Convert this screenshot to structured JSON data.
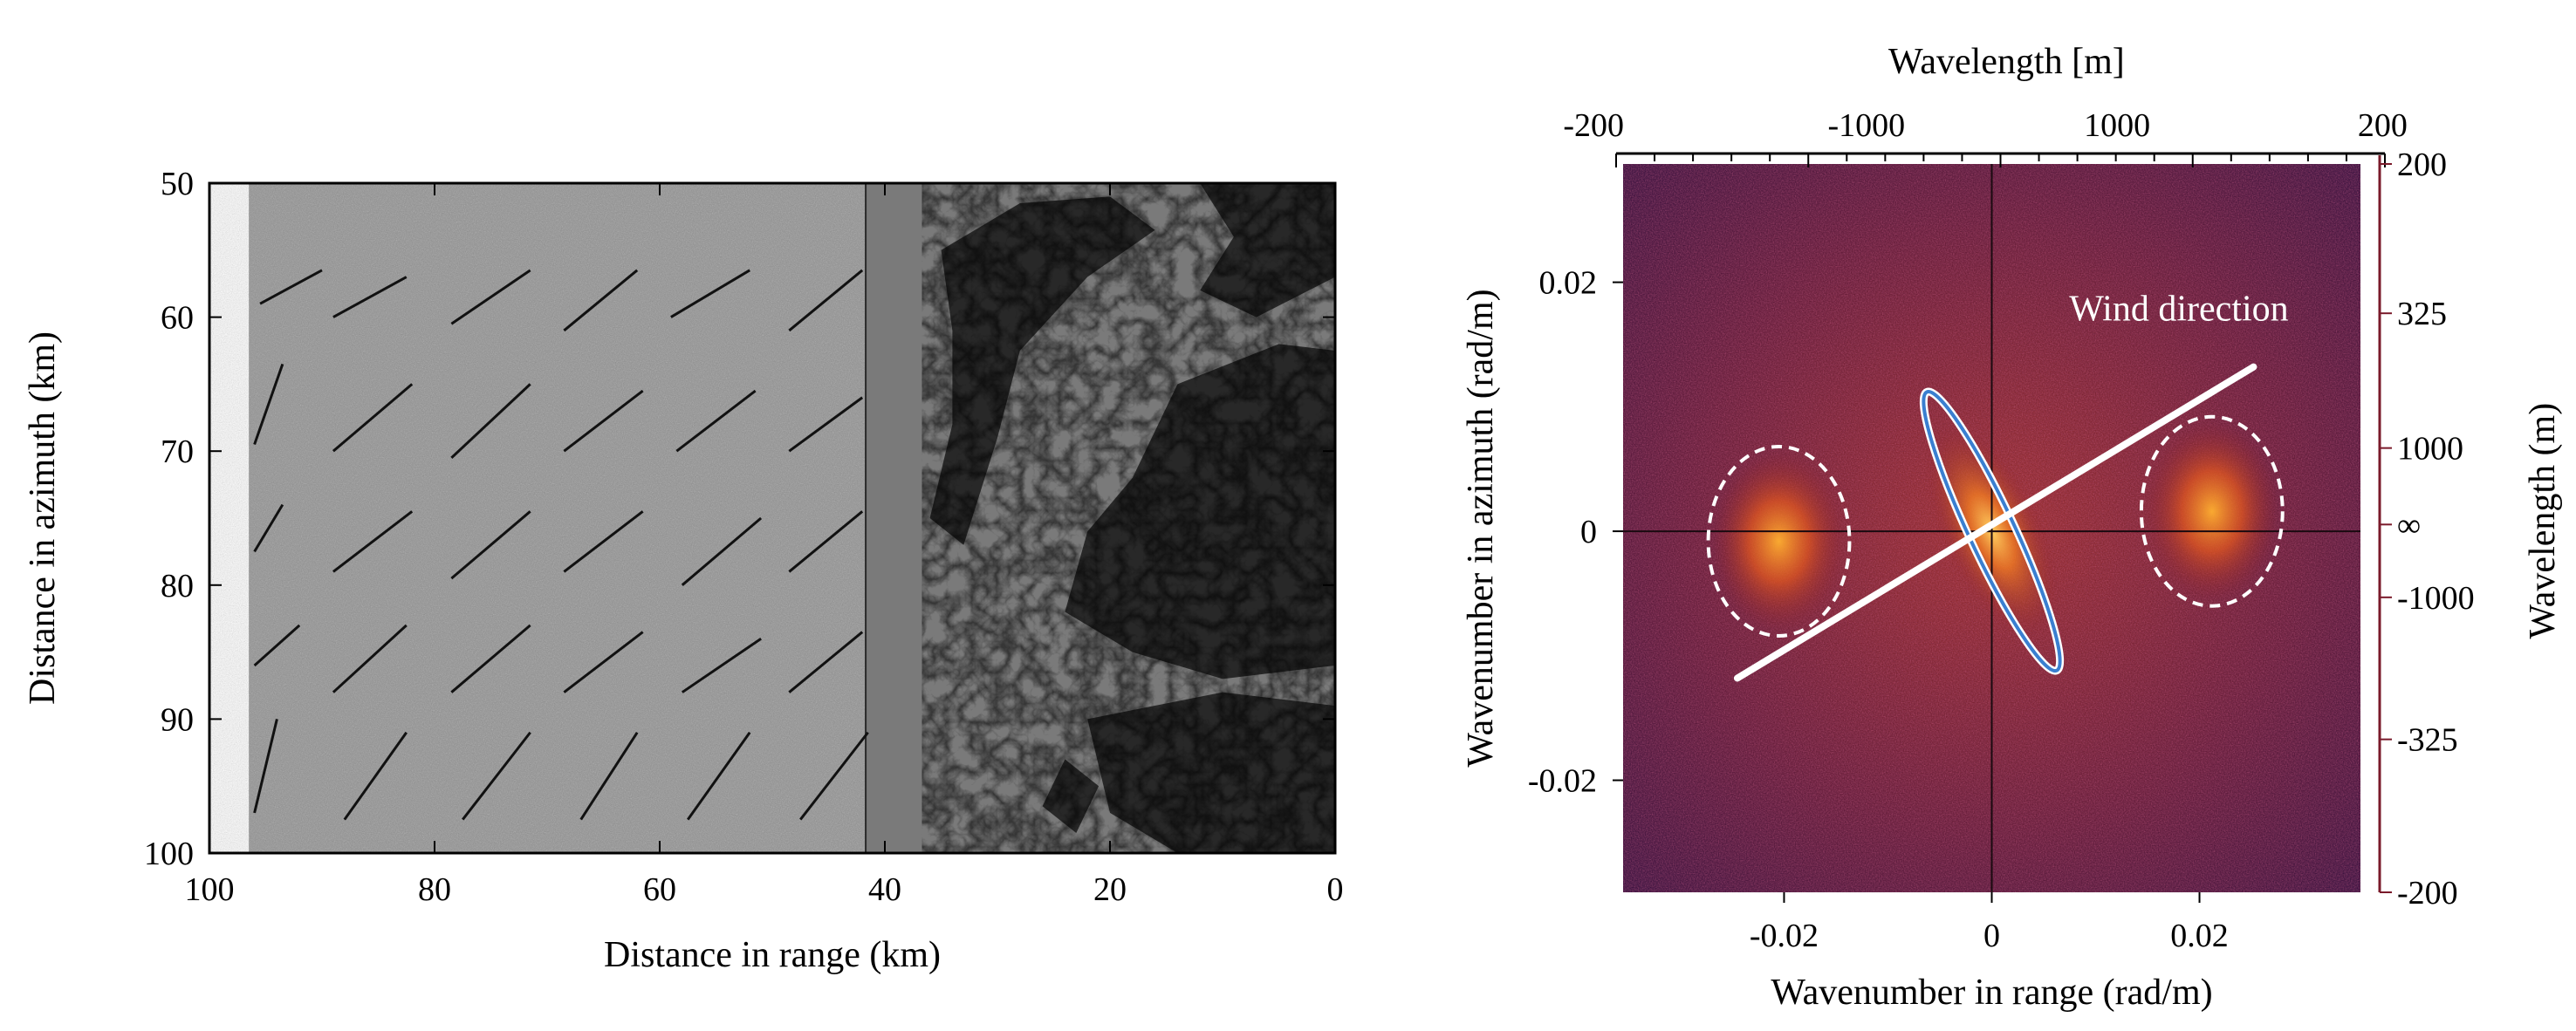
{
  "left_panel": {
    "xlabel": "Distance in range (km)",
    "ylabel": "Distance in azimuth (km)",
    "x_ticks": [
      100,
      80,
      60,
      40,
      20,
      0
    ],
    "y_ticks": [
      50,
      60,
      70,
      80,
      90,
      100
    ],
    "xlim": [
      100,
      0
    ],
    "ylim": [
      50,
      100
    ],
    "wind_marks": [
      {
        "x": [
          95.5,
          90.0
        ],
        "y": [
          59.0,
          56.5
        ]
      },
      {
        "x": [
          89.0,
          82.5
        ],
        "y": [
          60.0,
          57.0
        ]
      },
      {
        "x": [
          78.5,
          71.5
        ],
        "y": [
          60.5,
          56.5
        ]
      },
      {
        "x": [
          68.5,
          62.0
        ],
        "y": [
          61.0,
          56.5
        ]
      },
      {
        "x": [
          59.0,
          52.0
        ],
        "y": [
          60.0,
          56.5
        ]
      },
      {
        "x": [
          48.5,
          42.0
        ],
        "y": [
          61.0,
          56.5
        ]
      },
      {
        "x": [
          96.0,
          93.5
        ],
        "y": [
          69.5,
          63.5
        ]
      },
      {
        "x": [
          89.0,
          82.0
        ],
        "y": [
          70.0,
          65.0
        ]
      },
      {
        "x": [
          78.5,
          71.5
        ],
        "y": [
          70.5,
          65.0
        ]
      },
      {
        "x": [
          68.5,
          61.5
        ],
        "y": [
          70.0,
          65.5
        ]
      },
      {
        "x": [
          58.5,
          51.5
        ],
        "y": [
          70.0,
          65.5
        ]
      },
      {
        "x": [
          48.5,
          42.0
        ],
        "y": [
          70.0,
          66.0
        ]
      },
      {
        "x": [
          96.0,
          93.5
        ],
        "y": [
          77.5,
          74.0
        ]
      },
      {
        "x": [
          89.0,
          82.0
        ],
        "y": [
          79.0,
          74.5
        ]
      },
      {
        "x": [
          78.5,
          71.5
        ],
        "y": [
          79.5,
          74.5
        ]
      },
      {
        "x": [
          68.5,
          61.5
        ],
        "y": [
          79.0,
          74.5
        ]
      },
      {
        "x": [
          58.0,
          51.0
        ],
        "y": [
          80.0,
          75.0
        ]
      },
      {
        "x": [
          48.5,
          42.0
        ],
        "y": [
          79.0,
          74.5
        ]
      },
      {
        "x": [
          96.0,
          92.0
        ],
        "y": [
          86.0,
          83.0
        ]
      },
      {
        "x": [
          89.0,
          82.5
        ],
        "y": [
          88.0,
          83.0
        ]
      },
      {
        "x": [
          78.5,
          71.5
        ],
        "y": [
          88.0,
          83.0
        ]
      },
      {
        "x": [
          68.5,
          61.5
        ],
        "y": [
          88.0,
          83.5
        ]
      },
      {
        "x": [
          58.0,
          51.0
        ],
        "y": [
          88.0,
          84.0
        ]
      },
      {
        "x": [
          48.5,
          42.0
        ],
        "y": [
          88.0,
          83.5
        ]
      },
      {
        "x": [
          96.0,
          94.0
        ],
        "y": [
          97.0,
          90.0
        ]
      },
      {
        "x": [
          88.0,
          82.5
        ],
        "y": [
          97.5,
          91.0
        ]
      },
      {
        "x": [
          77.5,
          71.5
        ],
        "y": [
          97.5,
          91.0
        ]
      },
      {
        "x": [
          67.0,
          62.0
        ],
        "y": [
          97.5,
          91.0
        ]
      },
      {
        "x": [
          57.5,
          52.0
        ],
        "y": [
          97.5,
          91.0
        ]
      },
      {
        "x": [
          47.5,
          41.5
        ],
        "y": [
          97.5,
          91.0
        ]
      }
    ]
  },
  "right_panel": {
    "top_axis_title": "Wavelength [m]",
    "top_ticks": [
      "-200",
      "-1000",
      "1000",
      "200"
    ],
    "right_axis_title": "Wavelength (m)",
    "right_ticks": [
      "200",
      "325",
      "1000",
      "∞",
      "-1000",
      "-325",
      "-200"
    ],
    "xlabel": "Wavenumber in range (rad/m)",
    "ylabel": "Wavenumber in azimuth (rad/m)",
    "x_ticks": [
      "-0.02",
      "0",
      "0.02"
    ],
    "y_ticks": [
      "0.02",
      "0",
      "-0.02"
    ],
    "xlim": [
      -0.0355,
      0.0355
    ],
    "ylim": [
      -0.029,
      0.0295
    ],
    "annotation": "Wind direction",
    "wind_line": {
      "x": [
        -0.0245,
        0.0252
      ],
      "y": [
        -0.0118,
        0.0132
      ]
    },
    "central_ellipse": {
      "cx": 0.0,
      "cy": 0.0,
      "rx": 0.0148,
      "ry": 0.0022,
      "angle_deg": 65,
      "color": "#3a7fd0"
    },
    "side_ellipses": [
      {
        "cx": -0.0205,
        "cy": -0.0008,
        "rx": 0.0068,
        "ry": 0.0076,
        "color": "#ffffff"
      },
      {
        "cx": 0.0212,
        "cy": 0.0016,
        "rx": 0.0068,
        "ry": 0.0076,
        "color": "#ffffff"
      }
    ]
  },
  "colors": {
    "spectrum_background": "#3e0f2e",
    "spectrum_hot": "#ffb030",
    "sar_sea": "#8f8f8f",
    "sar_land": "#1c1c1c"
  }
}
